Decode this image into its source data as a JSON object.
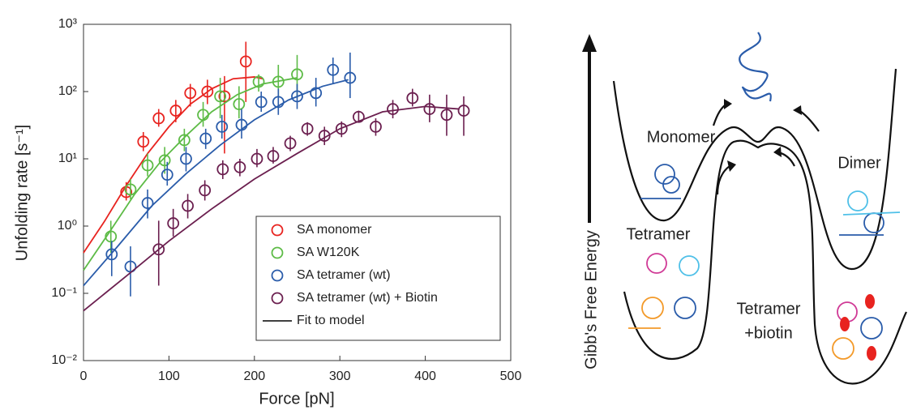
{
  "chart_data": {
    "type": "scatter",
    "xlabel": "Force [pN]",
    "ylabel": "Unfolding rate [s⁻¹]",
    "xlim": [
      0,
      500
    ],
    "xticks": [
      0,
      100,
      200,
      300,
      400,
      500
    ],
    "ylim": [
      0.01,
      1000
    ],
    "log_y": true,
    "yticks": [
      {
        "value": 0.01,
        "label": "10⁻²"
      },
      {
        "value": 0.1,
        "label": "10⁻¹"
      },
      {
        "value": 1,
        "label": "10⁰"
      },
      {
        "value": 10,
        "label": "10¹"
      },
      {
        "value": 100,
        "label": "10²"
      },
      {
        "value": 1000,
        "label": "10³"
      }
    ],
    "legend": "lower-right",
    "fit_label": "Fit to model",
    "fit_color": "#000000",
    "series": [
      {
        "name": "SA monomer",
        "color": "#e8231f",
        "x": [
          50,
          70,
          88,
          108,
          125,
          145,
          165,
          190
        ],
        "values": [
          3.2,
          18,
          40,
          52,
          95,
          100,
          85,
          280
        ],
        "lower": [
          2.4,
          13,
          30,
          35,
          60,
          65,
          12,
          70
        ],
        "upper": [
          4.5,
          25,
          55,
          75,
          130,
          150,
          170,
          550
        ],
        "fit": {
          "x": [
            0,
            25,
            50,
            75,
            100,
            125,
            150,
            175,
            200,
            210
          ],
          "y": [
            0.4,
            1.2,
            4,
            12,
            30,
            65,
            110,
            155,
            165,
            155
          ]
        }
      },
      {
        "name": "SA W120K",
        "color": "#5dbb46",
        "x": [
          32,
          55,
          75,
          95,
          118,
          140,
          160,
          182,
          205,
          228,
          250
        ],
        "values": [
          0.7,
          3.5,
          8,
          9.5,
          19,
          45,
          85,
          65,
          140,
          140,
          180
        ],
        "lower": [
          0.4,
          2.5,
          5.5,
          6,
          13,
          30,
          40,
          40,
          100,
          80,
          80
        ],
        "upper": [
          1.2,
          5,
          12,
          15,
          28,
          70,
          160,
          120,
          180,
          250,
          350
        ],
        "fit": {
          "x": [
            0,
            30,
            60,
            90,
            120,
            150,
            180,
            210,
            250
          ],
          "y": [
            0.22,
            0.8,
            3,
            9,
            22,
            50,
            90,
            130,
            160
          ]
        }
      },
      {
        "name": "SA tetramer (wt)",
        "color": "#2a5caa",
        "x": [
          33,
          55,
          75,
          98,
          120,
          143,
          162,
          185,
          208,
          228,
          250,
          272,
          292,
          312
        ],
        "values": [
          0.38,
          0.25,
          2.2,
          5.8,
          10,
          20,
          30,
          32,
          70,
          70,
          85,
          95,
          210,
          160
        ],
        "lower": [
          0.18,
          0.09,
          1.3,
          4,
          6.5,
          14,
          20,
          20,
          50,
          45,
          55,
          60,
          130,
          80
        ],
        "upper": [
          0.6,
          0.5,
          3.5,
          9,
          15,
          28,
          45,
          55,
          100,
          110,
          130,
          160,
          320,
          380
        ],
        "fit": {
          "x": [
            0,
            40,
            80,
            120,
            160,
            200,
            240,
            280,
            310
          ],
          "y": [
            0.13,
            0.5,
            2,
            6,
            16,
            38,
            75,
            120,
            150
          ]
        }
      },
      {
        "name": "SA tetramer (wt) + Biotin",
        "color": "#6b1f4f",
        "x": [
          88,
          105,
          122,
          142,
          163,
          183,
          203,
          222,
          242,
          262,
          282,
          302,
          322,
          342,
          362,
          385,
          405,
          425,
          445
        ],
        "values": [
          0.45,
          1.1,
          2,
          3.4,
          7,
          7.5,
          10,
          11,
          17,
          28,
          22,
          28,
          42,
          30,
          55,
          80,
          55,
          45,
          52
        ],
        "lower": [
          0.13,
          0.7,
          1.3,
          2.4,
          5,
          5.5,
          7.5,
          8.5,
          13,
          22,
          16,
          21,
          35,
          22,
          40,
          60,
          35,
          22,
          22
        ],
        "upper": [
          1.2,
          1.8,
          3,
          4.8,
          9.5,
          10,
          14,
          15,
          22,
          35,
          30,
          36,
          52,
          40,
          75,
          110,
          90,
          90,
          85
        ],
        "fit": {
          "x": [
            0,
            50,
            100,
            150,
            200,
            250,
            300,
            350,
            400,
            440
          ],
          "y": [
            0.055,
            0.18,
            0.6,
            1.8,
            5,
            12,
            28,
            50,
            60,
            55
          ]
        }
      }
    ]
  },
  "diagram": {
    "axis_label": "Gibb's Free Energy",
    "labels": [
      "Monomer",
      "Dimer",
      "Tetramer",
      "Tetramer",
      "+biotin"
    ]
  }
}
